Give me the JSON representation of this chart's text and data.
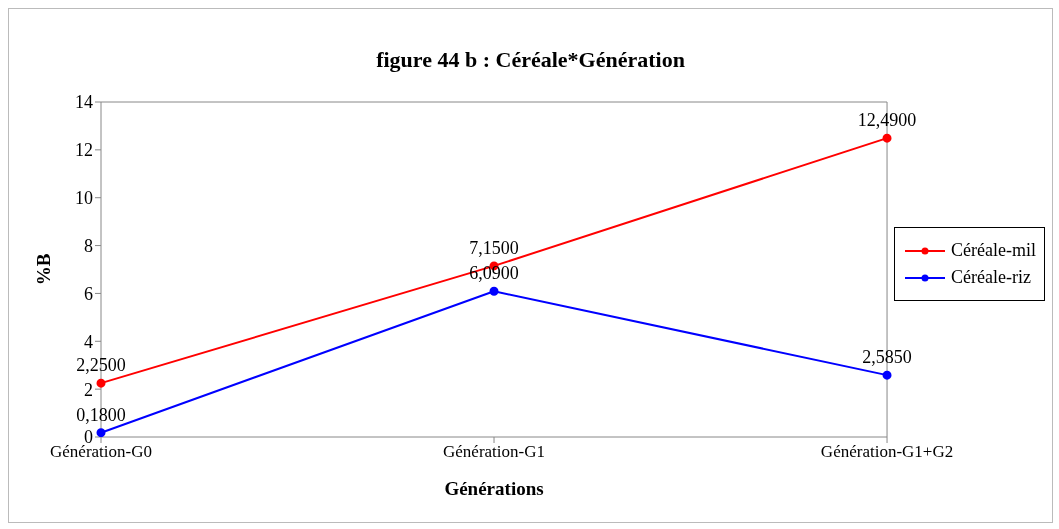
{
  "chart_data": {
    "type": "line",
    "title": "figure 44 b : Céréale*Génération",
    "xlabel": "Générations",
    "ylabel": "%B",
    "categories": [
      "Génération-G0",
      "Génération-G1",
      "Génération-G1+G2"
    ],
    "series": [
      {
        "name": "Céréale-mil",
        "color": "#ff0000",
        "values": [
          2.25,
          7.15,
          12.49
        ],
        "value_labels": [
          "2,2500",
          "7,1500",
          "12,4900"
        ]
      },
      {
        "name": "Céréale-riz",
        "color": "#0000ff",
        "values": [
          0.18,
          6.09,
          2.585
        ],
        "value_labels": [
          "0,1800",
          "6,0900",
          "2,5850"
        ]
      }
    ],
    "ylim": [
      0,
      14
    ],
    "yticks": [
      0,
      2,
      4,
      6,
      8,
      10,
      12,
      14
    ],
    "grid": false,
    "legend": "right",
    "marker": "circle",
    "line_style": "solid"
  }
}
